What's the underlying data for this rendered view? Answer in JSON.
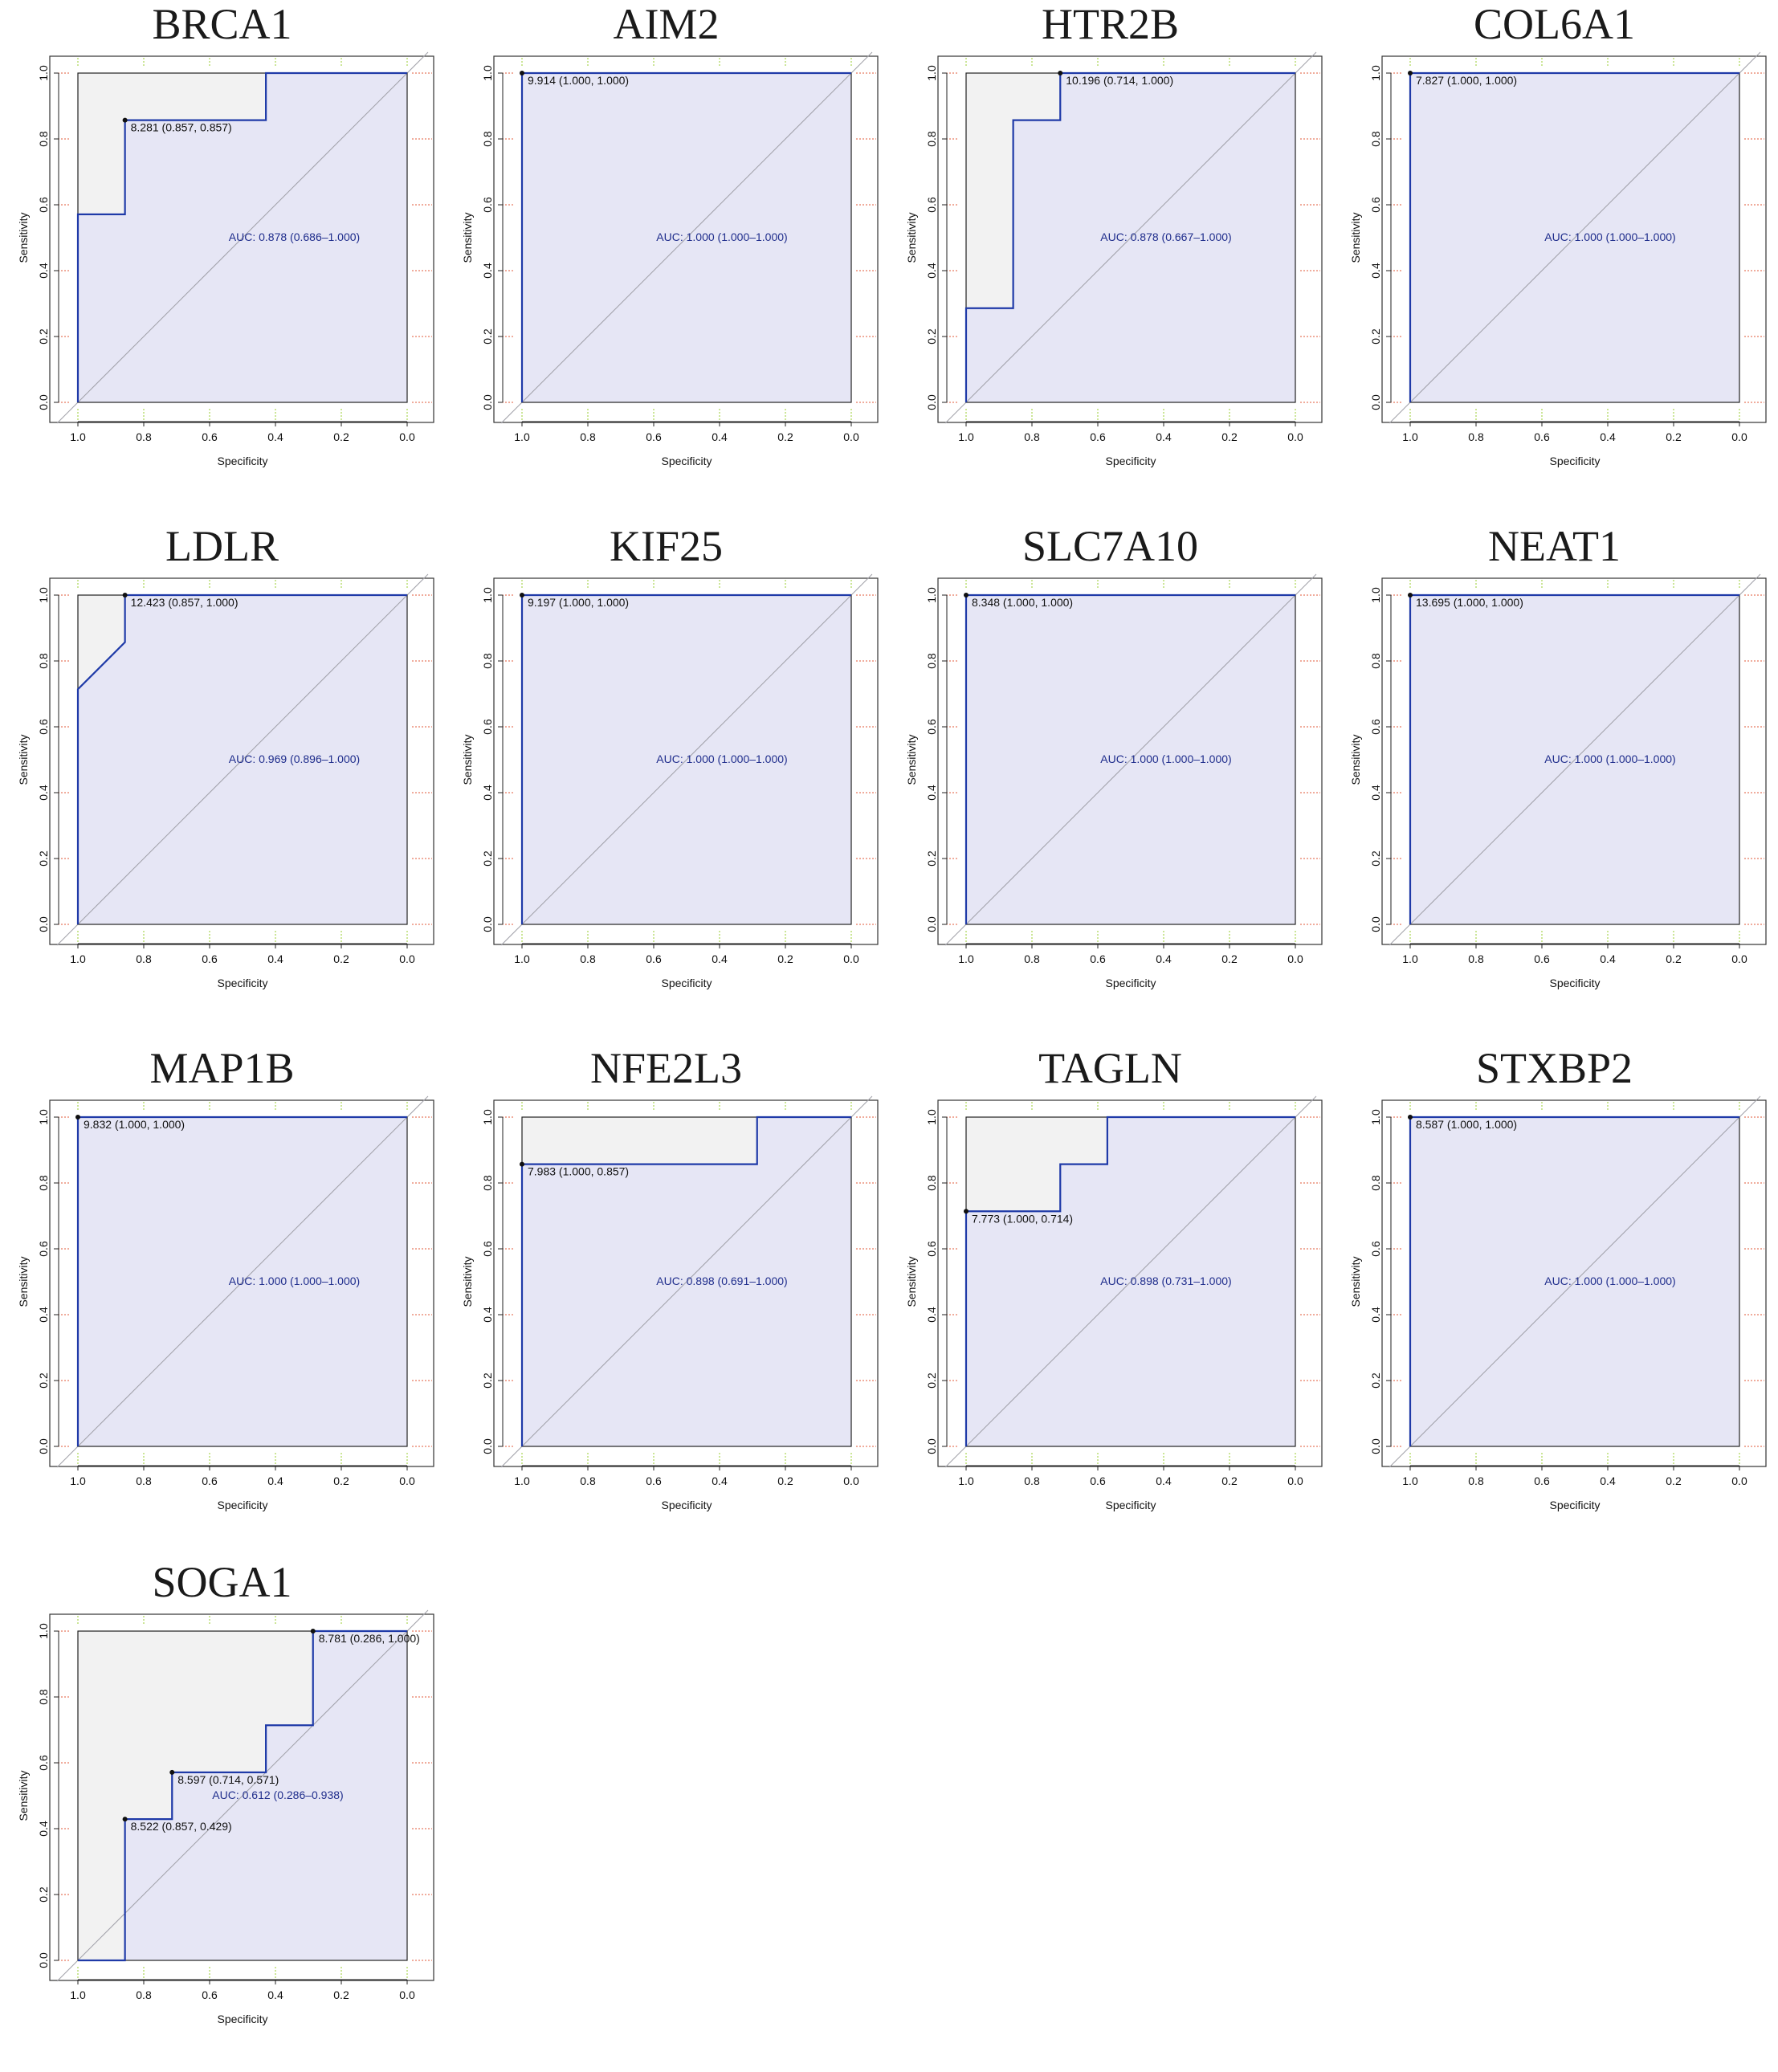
{
  "colors": {
    "roc_line": "#1f3aa8",
    "auc_fill": "#e6e6f5",
    "grey_fill": "#f2f2f2",
    "diagonal": "#a0a0a8",
    "grid_red": "#e05a3a",
    "grid_green": "#9acd32",
    "auc_text": "#1f2d8c"
  },
  "chart_data": [
    {
      "type": "line",
      "title": "BRCA1",
      "xlabel": "Specificity",
      "ylabel": "Sensitivity",
      "xlim": [
        1.0,
        0.0
      ],
      "ylim": [
        0.0,
        1.0
      ],
      "reversed_x": true,
      "x_ticks": [
        "1.0",
        "0.8",
        "0.6",
        "0.4",
        "0.2",
        "0.0"
      ],
      "y_ticks": [
        "0.0",
        "0.2",
        "0.4",
        "0.6",
        "0.8",
        "1.0"
      ],
      "roc": [
        [
          1.0,
          0.0
        ],
        [
          1.0,
          0.571
        ],
        [
          0.857,
          0.571
        ],
        [
          0.857,
          0.857
        ],
        [
          0.429,
          0.857
        ],
        [
          0.429,
          1.0
        ],
        [
          0.0,
          1.0
        ]
      ],
      "best_points": [
        {
          "x": 0.857,
          "y": 0.857,
          "label": "8.281 (0.857, 0.857)"
        }
      ],
      "auc_text": "AUC: 0.878 (0.686–1.000)",
      "auc_pos": [
        0.45,
        0.49
      ]
    },
    {
      "type": "line",
      "title": "AIM2",
      "xlabel": "Specificity",
      "ylabel": "Sensitivity",
      "xlim": [
        1.0,
        0.0
      ],
      "ylim": [
        0.0,
        1.0
      ],
      "reversed_x": true,
      "x_ticks": [
        "1.0",
        "0.8",
        "0.6",
        "0.4",
        "0.2",
        "0.0"
      ],
      "y_ticks": [
        "0.0",
        "0.2",
        "0.4",
        "0.6",
        "0.8",
        "1.0"
      ],
      "roc": [
        [
          1.0,
          0.0
        ],
        [
          1.0,
          1.0
        ],
        [
          0.0,
          1.0
        ]
      ],
      "best_points": [
        {
          "x": 1.0,
          "y": 1.0,
          "label": "9.914 (1.000, 1.000)"
        }
      ],
      "auc_text": "AUC: 1.000 (1.000–1.000)",
      "auc_pos": [
        0.5,
        0.49
      ]
    },
    {
      "type": "line",
      "title": "HTR2B",
      "xlabel": "Specificity",
      "ylabel": "Sensitivity",
      "xlim": [
        1.0,
        0.0
      ],
      "ylim": [
        0.0,
        1.0
      ],
      "reversed_x": true,
      "x_ticks": [
        "1.0",
        "0.8",
        "0.6",
        "0.4",
        "0.2",
        "0.0"
      ],
      "y_ticks": [
        "0.0",
        "0.2",
        "0.4",
        "0.6",
        "0.8",
        "1.0"
      ],
      "roc": [
        [
          1.0,
          0.0
        ],
        [
          1.0,
          0.286
        ],
        [
          0.857,
          0.286
        ],
        [
          0.857,
          0.857
        ],
        [
          0.714,
          0.857
        ],
        [
          0.714,
          1.0
        ],
        [
          0.0,
          1.0
        ]
      ],
      "best_points": [
        {
          "x": 0.714,
          "y": 1.0,
          "label": "10.196 (0.714, 1.000)"
        }
      ],
      "auc_text": "AUC: 0.878 (0.667–1.000)",
      "auc_pos": [
        0.5,
        0.49
      ]
    },
    {
      "type": "line",
      "title": "COL6A1",
      "xlabel": "Specificity",
      "ylabel": "Sensitivity",
      "xlim": [
        1.0,
        0.0
      ],
      "ylim": [
        0.0,
        1.0
      ],
      "reversed_x": true,
      "x_ticks": [
        "1.0",
        "0.8",
        "0.6",
        "0.4",
        "0.2",
        "0.0"
      ],
      "y_ticks": [
        "0.0",
        "0.2",
        "0.4",
        "0.6",
        "0.8",
        "1.0"
      ],
      "roc": [
        [
          1.0,
          0.0
        ],
        [
          1.0,
          1.0
        ],
        [
          0.0,
          1.0
        ]
      ],
      "best_points": [
        {
          "x": 1.0,
          "y": 1.0,
          "label": "7.827 (1.000, 1.000)"
        }
      ],
      "auc_text": "AUC: 1.000 (1.000–1.000)",
      "auc_pos": [
        0.5,
        0.49
      ]
    },
    {
      "type": "line",
      "title": "LDLR",
      "xlabel": "Specificity",
      "ylabel": "Sensitivity",
      "xlim": [
        1.0,
        0.0
      ],
      "ylim": [
        0.0,
        1.0
      ],
      "reversed_x": true,
      "x_ticks": [
        "1.0",
        "0.8",
        "0.6",
        "0.4",
        "0.2",
        "0.0"
      ],
      "y_ticks": [
        "0.0",
        "0.2",
        "0.4",
        "0.6",
        "0.8",
        "1.0"
      ],
      "roc": [
        [
          1.0,
          0.0
        ],
        [
          1.0,
          0.714
        ],
        [
          0.857,
          0.857
        ],
        [
          0.857,
          1.0
        ],
        [
          0.0,
          1.0
        ]
      ],
      "best_points": [
        {
          "x": 0.857,
          "y": 1.0,
          "label": "12.423 (0.857, 1.000)"
        }
      ],
      "auc_text": "AUC: 0.969 (0.896–1.000)",
      "auc_pos": [
        0.45,
        0.49
      ]
    },
    {
      "type": "line",
      "title": "KIF25",
      "xlabel": "Specificity",
      "ylabel": "Sensitivity",
      "xlim": [
        1.0,
        0.0
      ],
      "ylim": [
        0.0,
        1.0
      ],
      "reversed_x": true,
      "x_ticks": [
        "1.0",
        "0.8",
        "0.6",
        "0.4",
        "0.2",
        "0.0"
      ],
      "y_ticks": [
        "0.0",
        "0.2",
        "0.4",
        "0.6",
        "0.8",
        "1.0"
      ],
      "roc": [
        [
          1.0,
          0.0
        ],
        [
          1.0,
          1.0
        ],
        [
          0.0,
          1.0
        ]
      ],
      "best_points": [
        {
          "x": 1.0,
          "y": 1.0,
          "label": "9.197 (1.000, 1.000)"
        }
      ],
      "auc_text": "AUC: 1.000 (1.000–1.000)",
      "auc_pos": [
        0.5,
        0.49
      ]
    },
    {
      "type": "line",
      "title": "SLC7A10",
      "xlabel": "Specificity",
      "ylabel": "Sensitivity",
      "xlim": [
        1.0,
        0.0
      ],
      "ylim": [
        0.0,
        1.0
      ],
      "reversed_x": true,
      "x_ticks": [
        "1.0",
        "0.8",
        "0.6",
        "0.4",
        "0.2",
        "0.0"
      ],
      "y_ticks": [
        "0.0",
        "0.2",
        "0.4",
        "0.6",
        "0.8",
        "1.0"
      ],
      "roc": [
        [
          1.0,
          0.0
        ],
        [
          1.0,
          1.0
        ],
        [
          0.0,
          1.0
        ]
      ],
      "best_points": [
        {
          "x": 1.0,
          "y": 1.0,
          "label": "8.348 (1.000, 1.000)"
        }
      ],
      "auc_text": "AUC: 1.000 (1.000–1.000)",
      "auc_pos": [
        0.5,
        0.49
      ]
    },
    {
      "type": "line",
      "title": "NEAT1",
      "xlabel": "Specificity",
      "ylabel": "Sensitivity",
      "xlim": [
        1.0,
        0.0
      ],
      "ylim": [
        0.0,
        1.0
      ],
      "reversed_x": true,
      "x_ticks": [
        "1.0",
        "0.8",
        "0.6",
        "0.4",
        "0.2",
        "0.0"
      ],
      "y_ticks": [
        "0.0",
        "0.2",
        "0.4",
        "0.6",
        "0.8",
        "1.0"
      ],
      "roc": [
        [
          1.0,
          0.0
        ],
        [
          1.0,
          1.0
        ],
        [
          0.0,
          1.0
        ]
      ],
      "best_points": [
        {
          "x": 1.0,
          "y": 1.0,
          "label": "13.695 (1.000, 1.000)"
        }
      ],
      "auc_text": "AUC: 1.000 (1.000–1.000)",
      "auc_pos": [
        0.5,
        0.49
      ]
    },
    {
      "type": "line",
      "title": "MAP1B",
      "xlabel": "Specificity",
      "ylabel": "Sensitivity",
      "xlim": [
        1.0,
        0.0
      ],
      "ylim": [
        0.0,
        1.0
      ],
      "reversed_x": true,
      "x_ticks": [
        "1.0",
        "0.8",
        "0.6",
        "0.4",
        "0.2",
        "0.0"
      ],
      "y_ticks": [
        "0.0",
        "0.2",
        "0.4",
        "0.6",
        "0.8",
        "1.0"
      ],
      "roc": [
        [
          1.0,
          0.0
        ],
        [
          1.0,
          1.0
        ],
        [
          0.0,
          1.0
        ]
      ],
      "best_points": [
        {
          "x": 1.0,
          "y": 1.0,
          "label": "9.832 (1.000, 1.000)"
        }
      ],
      "auc_text": "AUC: 1.000 (1.000–1.000)",
      "auc_pos": [
        0.45,
        0.49
      ]
    },
    {
      "type": "line",
      "title": "NFE2L3",
      "xlabel": "Specificity",
      "ylabel": "Sensitivity",
      "xlim": [
        1.0,
        0.0
      ],
      "ylim": [
        0.0,
        1.0
      ],
      "reversed_x": true,
      "x_ticks": [
        "1.0",
        "0.8",
        "0.6",
        "0.4",
        "0.2",
        "0.0"
      ],
      "y_ticks": [
        "0.0",
        "0.2",
        "0.4",
        "0.6",
        "0.8",
        "1.0"
      ],
      "roc": [
        [
          1.0,
          0.0
        ],
        [
          1.0,
          0.857
        ],
        [
          0.286,
          0.857
        ],
        [
          0.286,
          1.0
        ],
        [
          0.0,
          1.0
        ]
      ],
      "best_points": [
        {
          "x": 1.0,
          "y": 0.857,
          "label": "7.983 (1.000, 0.857)"
        }
      ],
      "auc_text": "AUC: 0.898 (0.691–1.000)",
      "auc_pos": [
        0.5,
        0.49
      ]
    },
    {
      "type": "line",
      "title": "TAGLN",
      "xlabel": "Specificity",
      "ylabel": "Sensitivity",
      "xlim": [
        1.0,
        0.0
      ],
      "ylim": [
        0.0,
        1.0
      ],
      "reversed_x": true,
      "x_ticks": [
        "1.0",
        "0.8",
        "0.6",
        "0.4",
        "0.2",
        "0.0"
      ],
      "y_ticks": [
        "0.0",
        "0.2",
        "0.4",
        "0.6",
        "0.8",
        "1.0"
      ],
      "roc": [
        [
          1.0,
          0.0
        ],
        [
          1.0,
          0.714
        ],
        [
          0.714,
          0.714
        ],
        [
          0.714,
          0.857
        ],
        [
          0.571,
          0.857
        ],
        [
          0.571,
          1.0
        ],
        [
          0.0,
          1.0
        ]
      ],
      "best_points": [
        {
          "x": 1.0,
          "y": 0.714,
          "label": "7.773 (1.000, 0.714)"
        }
      ],
      "auc_text": "AUC: 0.898 (0.731–1.000)",
      "auc_pos": [
        0.5,
        0.49
      ]
    },
    {
      "type": "line",
      "title": "STXBP2",
      "xlabel": "Specificity",
      "ylabel": "Sensitivity",
      "xlim": [
        1.0,
        0.0
      ],
      "ylim": [
        0.0,
        1.0
      ],
      "reversed_x": true,
      "x_ticks": [
        "1.0",
        "0.8",
        "0.6",
        "0.4",
        "0.2",
        "0.0"
      ],
      "y_ticks": [
        "0.0",
        "0.2",
        "0.4",
        "0.6",
        "0.8",
        "1.0"
      ],
      "roc": [
        [
          1.0,
          0.0
        ],
        [
          1.0,
          1.0
        ],
        [
          0.0,
          1.0
        ]
      ],
      "best_points": [
        {
          "x": 1.0,
          "y": 1.0,
          "label": "8.587 (1.000, 1.000)"
        }
      ],
      "auc_text": "AUC: 1.000 (1.000–1.000)",
      "auc_pos": [
        0.5,
        0.49
      ]
    },
    {
      "type": "line",
      "title": "SOGA1",
      "xlabel": "Specificity",
      "ylabel": "Sensitivity",
      "xlim": [
        1.0,
        0.0
      ],
      "ylim": [
        0.0,
        1.0
      ],
      "reversed_x": true,
      "x_ticks": [
        "1.0",
        "0.8",
        "0.6",
        "0.4",
        "0.2",
        "0.0"
      ],
      "y_ticks": [
        "0.0",
        "0.2",
        "0.4",
        "0.6",
        "0.8",
        "1.0"
      ],
      "roc": [
        [
          1.0,
          0.0
        ],
        [
          0.857,
          0.0
        ],
        [
          0.857,
          0.429
        ],
        [
          0.714,
          0.429
        ],
        [
          0.714,
          0.571
        ],
        [
          0.429,
          0.571
        ],
        [
          0.429,
          0.714
        ],
        [
          0.286,
          0.714
        ],
        [
          0.286,
          1.0
        ],
        [
          0.0,
          1.0
        ]
      ],
      "best_points": [
        {
          "x": 0.286,
          "y": 1.0,
          "label": "8.781 (0.286, 1.000)"
        },
        {
          "x": 0.714,
          "y": 0.571,
          "label": "8.597 (0.714, 0.571)"
        },
        {
          "x": 0.857,
          "y": 0.429,
          "label": "8.522 (0.857, 0.429)"
        }
      ],
      "auc_text": "AUC: 0.612 (0.286–0.938)",
      "auc_pos": [
        0.5,
        0.49
      ]
    }
  ]
}
